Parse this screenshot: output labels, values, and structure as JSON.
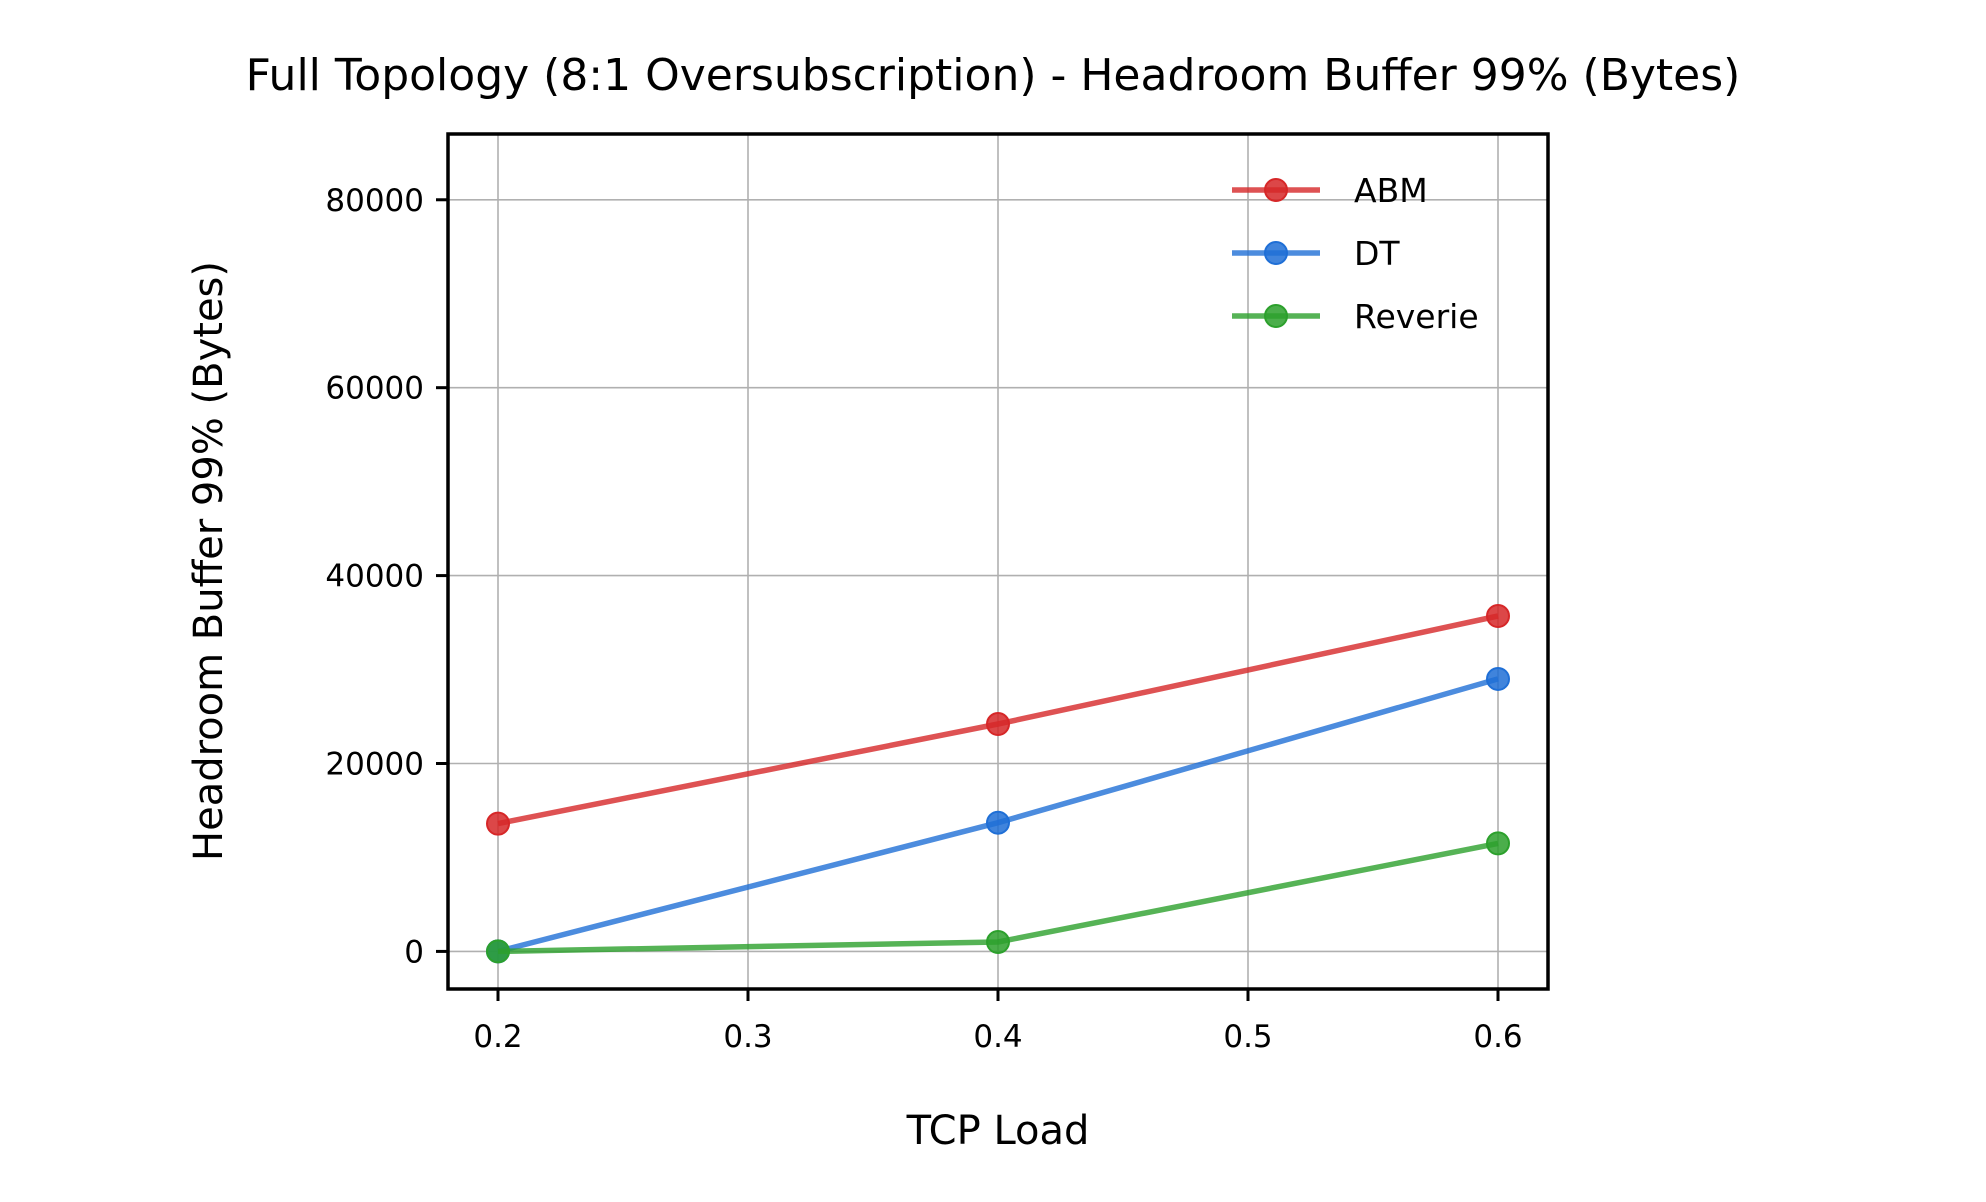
{
  "chart_data": {
    "type": "line",
    "title": "Full Topology (8:1 Oversubscription) - Headroom Buffer 99% (Bytes)",
    "xlabel": "TCP Load",
    "ylabel": "Headroom Buffer 99% (Bytes)",
    "xlim": [
      0.18,
      0.62
    ],
    "ylim": [
      -4000,
      87000
    ],
    "xticks": [
      0.2,
      0.3,
      0.4,
      0.5,
      0.6
    ],
    "xtick_labels": [
      "0.2",
      "0.3",
      "0.4",
      "0.5",
      "0.6"
    ],
    "yticks": [
      0,
      20000,
      40000,
      60000,
      80000
    ],
    "ytick_labels": [
      "0",
      "20000",
      "40000",
      "60000",
      "80000"
    ],
    "grid": true,
    "legend_position": "upper-right",
    "x": [
      0.2,
      0.4,
      0.6
    ],
    "series": [
      {
        "name": "ABM",
        "color": "#d62728",
        "values": [
          13600,
          24200,
          35700
        ]
      },
      {
        "name": "DT",
        "color": "#1f6fd6",
        "values": [
          0,
          13700,
          29000
        ]
      },
      {
        "name": "Reverie",
        "color": "#2ca02c",
        "values": [
          0,
          1000,
          11500
        ]
      }
    ]
  }
}
